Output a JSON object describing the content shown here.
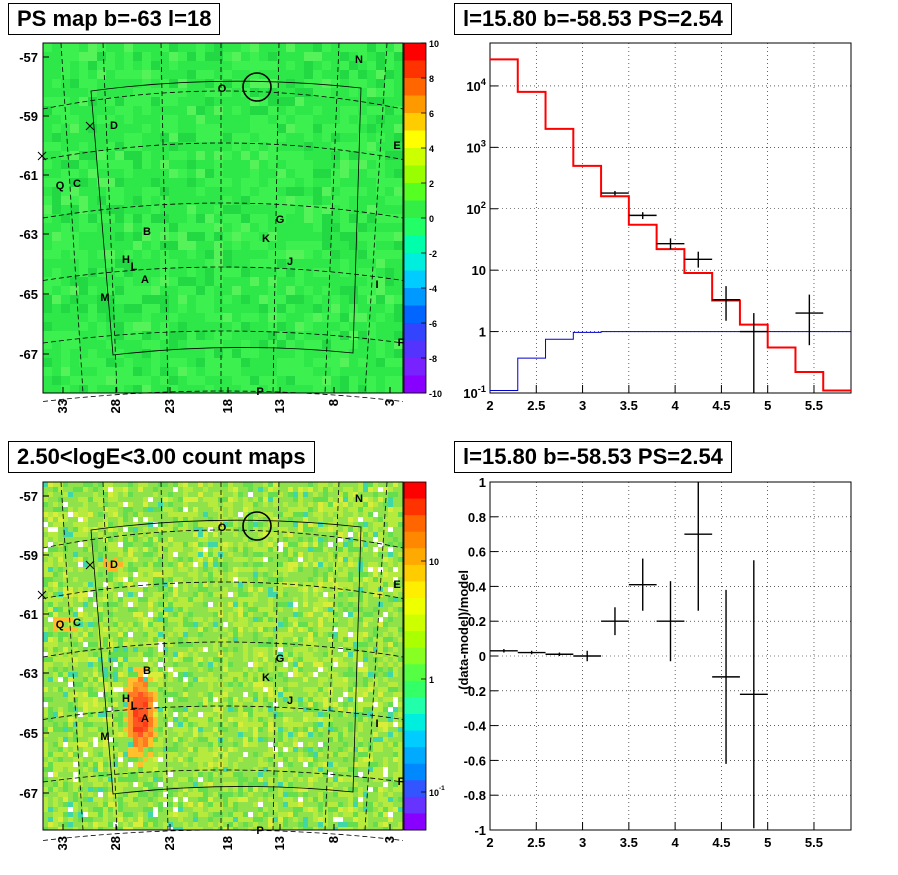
{
  "panels": {
    "tl_title": "PS map b=-63 l=18",
    "tr_title": "l=15.80 b=-58.53 PS=2.54",
    "bl_title": "2.50<logE<3.00 count maps",
    "br_title": "l=15.80 b=-58.53 PS=2.54"
  },
  "colors": {
    "map_green": "#2ee84a",
    "data": "#000000",
    "model": "#ff0000",
    "background_model": "#0000cc"
  },
  "chart_data": [
    {
      "type": "heatmap",
      "title": "PS map b=-63 l=18",
      "x_ticks": [
        "33",
        "28",
        "23",
        "18",
        "13",
        "8",
        "3"
      ],
      "y_ticks": [
        "-57",
        "-59",
        "-61",
        "-63",
        "-65",
        "-67"
      ],
      "colorbar_ticks": [
        "10",
        "8",
        "6",
        "4",
        "2",
        "0",
        "-2",
        "-4",
        "-6",
        "-8",
        "-10"
      ],
      "colorbar_range": [
        -10,
        10
      ],
      "sources": [
        "N",
        "O",
        "D",
        "E",
        "Q",
        "C",
        "G",
        "B",
        "K",
        "H",
        "L",
        "J",
        "A",
        "I",
        "M",
        "F",
        "P"
      ]
    },
    {
      "type": "line",
      "title": "l=15.80 b=-58.53 PS=2.54",
      "x_ticks": [
        "2",
        "2.5",
        "3",
        "3.5",
        "4",
        "4.5",
        "5",
        "5.5"
      ],
      "y_ticks": [
        "10^-1",
        "1",
        "10",
        "10^2",
        "10^3",
        "10^4"
      ],
      "yscale": "log",
      "xlim": [
        2,
        5.9
      ],
      "ylim": [
        0.1,
        50000
      ],
      "model_edges": [
        2.0,
        2.3,
        2.6,
        2.9,
        3.2,
        3.5,
        3.8,
        4.1,
        4.4,
        4.7,
        5.0,
        5.3,
        5.6,
        5.9
      ],
      "model_values": [
        27000,
        8000,
        2000,
        500,
        160,
        55,
        22,
        9,
        3.2,
        1.3,
        0.55,
        0.22,
        0.11
      ],
      "background_values": [
        0.11,
        0.37,
        0.75,
        0.97,
        1.0,
        1.0,
        1.0,
        1.0,
        1.0,
        1.0,
        1.0,
        1.0,
        1.0
      ],
      "data_points": [
        {
          "x": 3.35,
          "y": 180,
          "xerr": 0.15,
          "ylo": 165,
          "yhi": 195
        },
        {
          "x": 3.65,
          "y": 78,
          "xerr": 0.15,
          "ylo": 68,
          "yhi": 88
        },
        {
          "x": 3.95,
          "y": 27,
          "xerr": 0.15,
          "ylo": 22,
          "yhi": 33
        },
        {
          "x": 4.25,
          "y": 15,
          "xerr": 0.15,
          "ylo": 11,
          "yhi": 20
        },
        {
          "x": 4.55,
          "y": 3.3,
          "xerr": 0.15,
          "ylo": 1.5,
          "yhi": 5.5
        },
        {
          "x": 4.85,
          "y": 1.0,
          "xerr": 0.15,
          "ylo": 0.1,
          "yhi": 2.0
        },
        {
          "x": 5.45,
          "y": 2.0,
          "xerr": 0.15,
          "ylo": 0.6,
          "yhi": 4.0
        }
      ]
    },
    {
      "type": "heatmap",
      "title": "2.50<logE<3.00 count maps",
      "x_ticks": [
        "33",
        "28",
        "23",
        "18",
        "13",
        "8",
        "3"
      ],
      "y_ticks": [
        "-57",
        "-59",
        "-61",
        "-63",
        "-65",
        "-67"
      ],
      "colorbar_ticks": [
        "10",
        "1",
        "10^-1"
      ],
      "colorbar_scale": "log",
      "sources": [
        "N",
        "O",
        "D",
        "E",
        "Q",
        "C",
        "G",
        "B",
        "K",
        "H",
        "L",
        "J",
        "A",
        "I",
        "M",
        "F",
        "P"
      ]
    },
    {
      "type": "scatter",
      "title": "l=15.80 b=-58.53 PS=2.54",
      "ylabel": "(data-model)/model",
      "x_ticks": [
        "2",
        "2.5",
        "3",
        "3.5",
        "4",
        "4.5",
        "5",
        "5.5"
      ],
      "y_ticks": [
        "1",
        "0.8",
        "0.6",
        "0.4",
        "0.2",
        "0",
        "-0.2",
        "-0.4",
        "-0.6",
        "-0.8",
        "-1"
      ],
      "xlim": [
        2,
        5.9
      ],
      "ylim": [
        -1,
        1
      ],
      "points": [
        {
          "x": 2.15,
          "y": 0.03,
          "xerr": 0.15,
          "yerr": 0.01
        },
        {
          "x": 2.45,
          "y": 0.02,
          "xerr": 0.15,
          "yerr": 0.01
        },
        {
          "x": 2.75,
          "y": 0.01,
          "xerr": 0.15,
          "yerr": 0.01
        },
        {
          "x": 3.05,
          "y": 0.0,
          "xerr": 0.15,
          "yerr": 0.03
        },
        {
          "x": 3.35,
          "y": 0.2,
          "xerr": 0.15,
          "yerr": 0.08
        },
        {
          "x": 3.65,
          "y": 0.41,
          "xerr": 0.15,
          "yerr": 0.15
        },
        {
          "x": 3.95,
          "y": 0.2,
          "xerr": 0.15,
          "yerr": 0.23
        },
        {
          "x": 4.25,
          "y": 0.7,
          "xerr": 0.15,
          "yerr": 0.44
        },
        {
          "x": 4.55,
          "y": -0.12,
          "xerr": 0.15,
          "yerr": 0.5
        },
        {
          "x": 4.85,
          "y": -0.22,
          "xerr": 0.15,
          "yerr": 0.77
        }
      ]
    }
  ]
}
